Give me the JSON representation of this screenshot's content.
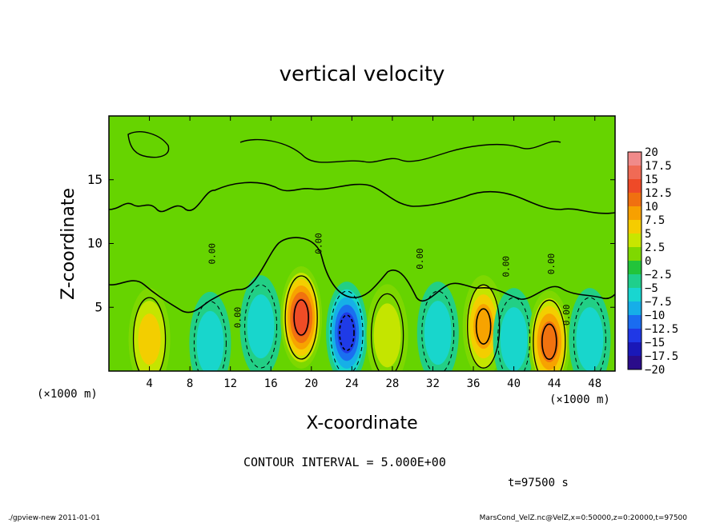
{
  "chart_data": {
    "type": "heatmap",
    "title": "vertical velocity",
    "xlabel": "X-coordinate",
    "ylabel": "Z-coordinate",
    "x_unit_left": "(×1000 m)",
    "x_unit_right": "(×1000 m)",
    "y_unit": "(×1000 m)",
    "xlim": [
      0,
      50
    ],
    "ylim": [
      0,
      20
    ],
    "xticks": [
      "4",
      "8",
      "12",
      "16",
      "20",
      "24",
      "28",
      "32",
      "36",
      "40",
      "44",
      "48"
    ],
    "yticks": [
      "5",
      "10",
      "15"
    ],
    "colorbar": {
      "levels": [
        "20",
        "17.5",
        "15",
        "12.5",
        "10",
        "7.5",
        "5",
        "2.5",
        "0",
        "−2.5",
        "−5",
        "−7.5",
        "−10",
        "−12.5",
        "−15",
        "−17.5",
        "−20"
      ],
      "colors": [
        "#f08a8a",
        "#f06a55",
        "#ee4a28",
        "#f07010",
        "#f7a000",
        "#f5cc00",
        "#c8e600",
        "#7fd800",
        "#22c43a",
        "#1fcf8c",
        "#18d6d0",
        "#16aee8",
        "#1a6cf0",
        "#2038e6",
        "#1a18b8",
        "#2a0c8a",
        "#5a10a8"
      ]
    },
    "contour_label": "0.00",
    "features": [
      {
        "x": 4,
        "z": 2.5,
        "w": 7.5
      },
      {
        "x": 10,
        "z": 2.2,
        "w": -4
      },
      {
        "x": 15,
        "z": 3.5,
        "w": -4
      },
      {
        "x": 19,
        "z": 4.2,
        "w": 15
      },
      {
        "x": 23.5,
        "z": 3.0,
        "w": -12
      },
      {
        "x": 27.5,
        "z": 2.8,
        "w": 3
      },
      {
        "x": 32.5,
        "z": 3.0,
        "w": -5
      },
      {
        "x": 37,
        "z": 3.5,
        "w": 10
      },
      {
        "x": 40,
        "z": 2.5,
        "w": -5
      },
      {
        "x": 43.5,
        "z": 2.3,
        "w": 12
      },
      {
        "x": 47.5,
        "z": 2.5,
        "w": -5
      }
    ],
    "grid": false
  },
  "annotation": "CONTOUR INTERVAL =  5.000E+00",
  "time_label": "t=97500  s",
  "footer_left": "./gpview-new   2011-01-01",
  "footer_right": "MarsCond_VelZ.nc@VelZ,x=0:50000,z=0:20000,t=97500"
}
